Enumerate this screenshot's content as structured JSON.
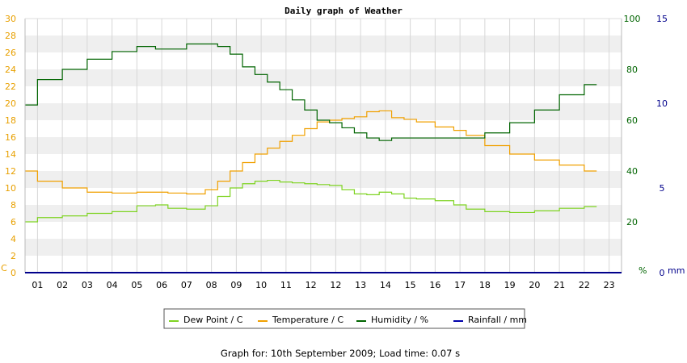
{
  "chart_data": {
    "type": "line",
    "title": "Daily graph of Weather",
    "footer": "Graph for: 10th September 2009; Load time: 0.07 s",
    "x_tick_labels": [
      "01",
      "01",
      "02",
      "03",
      "04",
      "05",
      "06",
      "07",
      "08",
      "09",
      "10",
      "11",
      "12",
      "12",
      "13",
      "14",
      "15",
      "16",
      "17",
      "18",
      "19",
      "20",
      "21",
      "22",
      "23"
    ],
    "axes": {
      "left": {
        "unit": "C",
        "range": [
          0,
          30
        ],
        "step": 2,
        "color": "#e8a000"
      },
      "right1": {
        "unit": "%",
        "range": [
          0,
          100
        ],
        "step": 20,
        "color": "#006400"
      },
      "right2": {
        "unit": "mm",
        "range": [
          0,
          15
        ],
        "step": 5,
        "color": "#00008b"
      }
    },
    "grid": true,
    "legend_position": "bottom-center",
    "series": [
      {
        "name": "Dew Point / C",
        "color": "#7ed321",
        "axis": "left",
        "x": [
          0,
          1,
          2,
          3,
          4,
          5,
          5.5,
          6,
          7,
          7.5,
          8,
          8.5,
          9,
          9.5,
          10,
          10.5,
          11,
          11.5,
          12,
          12.5,
          13,
          13.5,
          14,
          14.5,
          15,
          15.5,
          16,
          17,
          17.5,
          18,
          19,
          20,
          21,
          22,
          23
        ],
        "y": [
          6.0,
          6.5,
          6.7,
          7.0,
          7.2,
          7.9,
          8.0,
          7.6,
          7.5,
          7.9,
          9.0,
          10.0,
          10.5,
          10.8,
          10.9,
          10.7,
          10.6,
          10.5,
          10.4,
          10.3,
          9.8,
          9.3,
          9.2,
          9.5,
          9.3,
          8.8,
          8.7,
          8.5,
          8.0,
          7.5,
          7.2,
          7.1,
          7.3,
          7.6,
          7.8
        ]
      },
      {
        "name": "Temperature / C",
        "color": "#f0a000",
        "axis": "left",
        "x": [
          0,
          1,
          2,
          3,
          4,
          5,
          5.5,
          6,
          7,
          7.5,
          8,
          8.5,
          9,
          9.5,
          10,
          10.5,
          11,
          11.5,
          12,
          12.5,
          13,
          13.5,
          14,
          14.5,
          15,
          15.5,
          16,
          17,
          17.5,
          18,
          19,
          20,
          21,
          22,
          23
        ],
        "y": [
          12.0,
          10.8,
          10.0,
          9.5,
          9.4,
          9.5,
          9.5,
          9.4,
          9.3,
          9.8,
          10.8,
          12.0,
          13.0,
          14.0,
          14.7,
          15.5,
          16.2,
          17.0,
          17.8,
          18.0,
          18.2,
          18.4,
          19.0,
          19.1,
          18.3,
          18.1,
          17.8,
          17.2,
          16.8,
          16.2,
          15.0,
          14.0,
          13.3,
          12.7,
          12.0
        ]
      },
      {
        "name": "Humidity / %",
        "color": "#006400",
        "axis": "right1",
        "x": [
          0,
          1,
          2,
          3,
          4,
          5,
          5.5,
          6,
          7,
          7.5,
          8,
          8.5,
          9,
          9.5,
          10,
          10.5,
          11,
          11.5,
          12,
          12.5,
          13,
          13.5,
          14,
          14.5,
          15,
          15.5,
          16,
          17,
          17.5,
          18,
          19,
          20,
          21,
          22,
          23
        ],
        "y": [
          66,
          76,
          80,
          84,
          87,
          89,
          88,
          88,
          90,
          90,
          89,
          86,
          81,
          78,
          75,
          72,
          68,
          64,
          60,
          59,
          57,
          55,
          53,
          52,
          53,
          53,
          53,
          53,
          53,
          53,
          55,
          59,
          64,
          70,
          74
        ]
      },
      {
        "name": "Rainfall / mm",
        "color": "#0000aa",
        "axis": "right2",
        "x": [
          0,
          23
        ],
        "y": [
          0,
          0
        ]
      }
    ]
  }
}
